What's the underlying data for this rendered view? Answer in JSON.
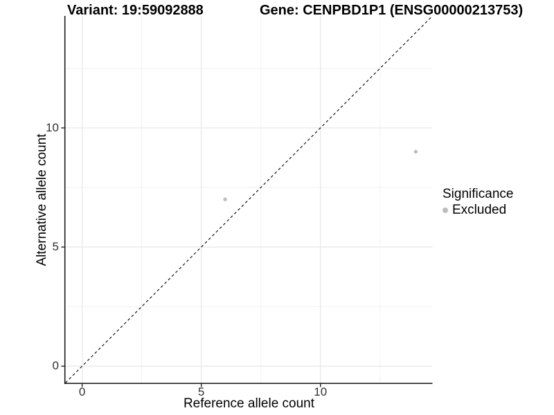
{
  "titles": {
    "variant": "Variant: 19:59092888",
    "gene": "Gene: CENPBD1P1 (ENSG00000213753)"
  },
  "axes": {
    "x_label": "Reference allele count",
    "y_label": "Alternative allele count",
    "x_tick_labels": [
      "0",
      "5",
      "10"
    ],
    "y_tick_labels": [
      "0",
      "5",
      "10"
    ]
  },
  "legend": {
    "title": "Significance",
    "items": [
      {
        "label": "Excluded",
        "marker": "circle",
        "color": "#bdbdbd"
      }
    ]
  },
  "chart_data": {
    "type": "scatter",
    "title": "Variant: 19:59092888",
    "subtitle": "Gene: CENPBD1P1 (ENSG00000213753)",
    "xlabel": "Reference allele count",
    "ylabel": "Alternative allele count",
    "xlim": [
      -0.7,
      14.7
    ],
    "ylim": [
      -0.7,
      14.7
    ],
    "x_ticks": [
      0,
      5,
      10
    ],
    "y_ticks": [
      0,
      5,
      10
    ],
    "minor_ticks": [
      2.5,
      7.5,
      12.5
    ],
    "grid": "major-and-minor, very light gray, white background",
    "legend_position": "right",
    "series": [
      {
        "name": "Excluded",
        "color": "#bdbdbd",
        "x": [
          6,
          14
        ],
        "y": [
          7,
          9
        ]
      }
    ],
    "reference_line": {
      "kind": "identity y=x",
      "style": "dashed",
      "color": "#000000"
    }
  },
  "colors": {
    "background": "#ffffff",
    "grid_major": "#e7e7e7",
    "grid_minor": "#f1f1f1",
    "axis_line": "#1a1a1a",
    "tick_label": "#303030",
    "point": "#bdbdbd",
    "dashed_line": "#000000"
  }
}
